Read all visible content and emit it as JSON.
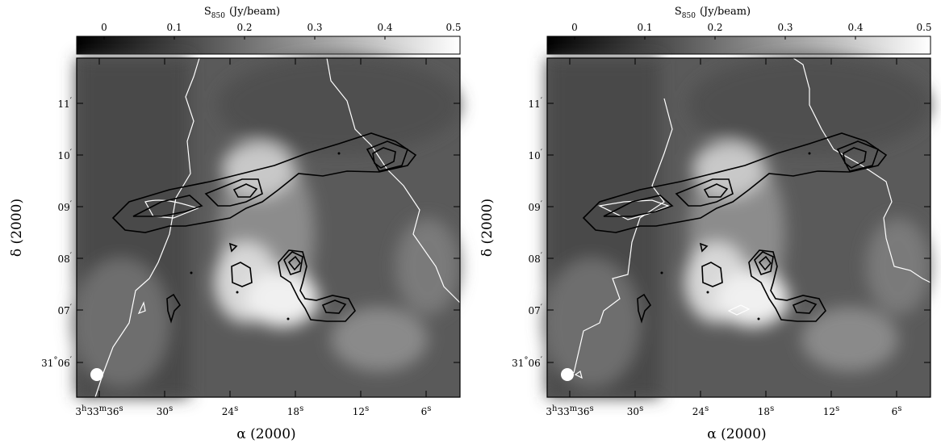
{
  "panels": [
    {
      "id": "left",
      "colorbar": {
        "title_main": "S",
        "title_sub": "850",
        "title_unit": "(Jy/beam)",
        "ticks": [
          "0",
          "0.1",
          "0.2",
          "0.3",
          "0.4",
          "0.5"
        ]
      },
      "xaxis": {
        "label": "α (2000)",
        "first_tick": {
          "h": "3",
          "m": "33",
          "s": "36"
        },
        "ticks": [
          {
            "value": "30",
            "unit": "s"
          },
          {
            "value": "24",
            "unit": "s"
          },
          {
            "value": "18",
            "unit": "s"
          },
          {
            "value": "12",
            "unit": "s"
          },
          {
            "value": "6",
            "unit": "s"
          }
        ]
      },
      "yaxis": {
        "label": "δ (2000)",
        "first_tick": {
          "deg": "31",
          "min": "06"
        },
        "ticks": [
          "07",
          "08",
          "09",
          "10",
          "11"
        ]
      }
    },
    {
      "id": "right",
      "colorbar": {
        "title_main": "S",
        "title_sub": "850",
        "title_unit": "(Jy/beam)",
        "ticks": [
          "0",
          "0.1",
          "0.2",
          "0.3",
          "0.4",
          "0.5"
        ]
      },
      "xaxis": {
        "label": "α (2000)",
        "first_tick": {
          "h": "3",
          "m": "33",
          "s": "36"
        },
        "ticks": [
          {
            "value": "30",
            "unit": "s"
          },
          {
            "value": "24",
            "unit": "s"
          },
          {
            "value": "18",
            "unit": "s"
          },
          {
            "value": "12",
            "unit": "s"
          },
          {
            "value": "6",
            "unit": "s"
          }
        ]
      },
      "yaxis": {
        "label": "δ (2000)",
        "first_tick": {
          "deg": "31",
          "min": "06"
        },
        "ticks": [
          "07",
          "08",
          "09",
          "10",
          "11"
        ]
      }
    }
  ],
  "colors": {
    "contour_black": "#000000",
    "contour_white": "#ffffff",
    "beam": "#ffffff"
  }
}
